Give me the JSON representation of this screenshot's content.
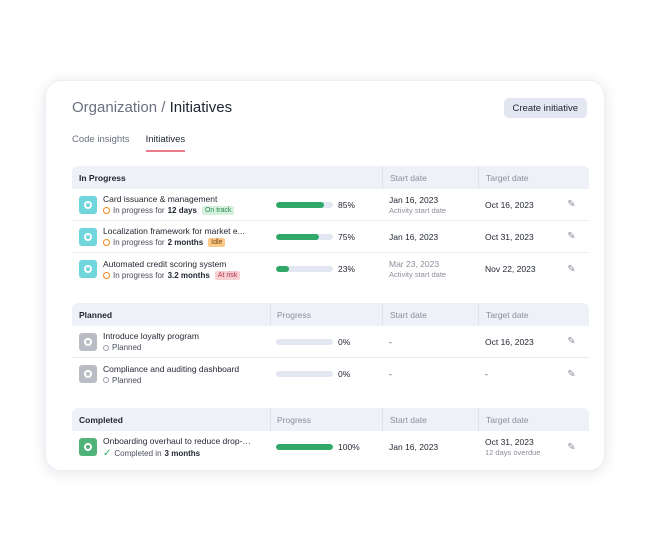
{
  "header": {
    "breadcrumb_parent": "Organization",
    "breadcrumb_sep": " / ",
    "title": "Initiatives",
    "create_label": "Create initiative"
  },
  "tabs": [
    {
      "label": "Code insights"
    },
    {
      "label": "Initiatives",
      "active": true
    }
  ],
  "columns": {
    "progress": "Progress",
    "start": "Start date",
    "target": "Target date"
  },
  "colors": {
    "accent_green": "#2fa86a",
    "teal_icon": "#6fd6dc",
    "grey_icon": "#b9bcc4",
    "green_icon": "#4fb37a",
    "in_progress_dot": "#f08a1c"
  },
  "sections": [
    {
      "title": "In Progress",
      "show_progress_header": false,
      "rows": [
        {
          "name": "Card issuance & management",
          "status_prefix": "In progress for",
          "duration": "12 days",
          "badge": "On track",
          "badge_bg": "#d5f1de",
          "badge_fg": "#2a8a4f",
          "progress": 85,
          "progress_label": "85%",
          "start": "Jan 16, 2023",
          "start_sub": "Activity start date",
          "start_muted": false,
          "target": "Oct 16, 2023",
          "target_sub": "",
          "icon": "teal"
        },
        {
          "name": "Localization framework for market e...",
          "status_prefix": "In progress for",
          "duration": "2 months",
          "badge": "Idle",
          "badge_bg": "#fcc98a",
          "badge_fg": "#7a4a12",
          "progress": 75,
          "progress_label": "75%",
          "start": "Jan 16, 2023",
          "start_sub": "",
          "start_muted": false,
          "target": "Oct 31, 2023",
          "target_sub": "",
          "icon": "teal"
        },
        {
          "name": "Automated credit scoring system",
          "status_prefix": "In progress for",
          "duration": "3.2 months",
          "badge": "At risk",
          "badge_bg": "#f8d0d4",
          "badge_fg": "#b23a48",
          "progress": 23,
          "progress_label": "23%",
          "start": "Mar 23, 2023",
          "start_sub": "Activity start date",
          "start_muted": true,
          "target": "Nov 22, 2023",
          "target_sub": "",
          "icon": "teal"
        }
      ]
    },
    {
      "title": "Planned",
      "show_progress_header": true,
      "rows": [
        {
          "name": "Introduce loyalty program",
          "status_prefix": "Planned",
          "duration": "",
          "badge": "",
          "progress": 0,
          "progress_label": "0%",
          "start": "-",
          "start_sub": "",
          "target": "Oct 16, 2023",
          "target_sub": "",
          "icon": "grey"
        },
        {
          "name": "Compliance and auditing dashboard",
          "status_prefix": "Planned",
          "duration": "",
          "badge": "",
          "progress": 0,
          "progress_label": "0%",
          "start": "-",
          "start_sub": "",
          "target": "-",
          "target_sub": "",
          "icon": "grey"
        }
      ]
    },
    {
      "title": "Completed",
      "show_progress_header": true,
      "rows": [
        {
          "name": "Onboarding overhaul to reduce drop-offs",
          "status_prefix": "Completed in",
          "duration": "3 months",
          "badge": "",
          "progress": 100,
          "progress_label": "100%",
          "start": "Jan 16, 2023",
          "start_sub": "",
          "target": "Oct 31, 2023",
          "target_sub": "12 days overdue",
          "icon": "green"
        }
      ]
    }
  ]
}
